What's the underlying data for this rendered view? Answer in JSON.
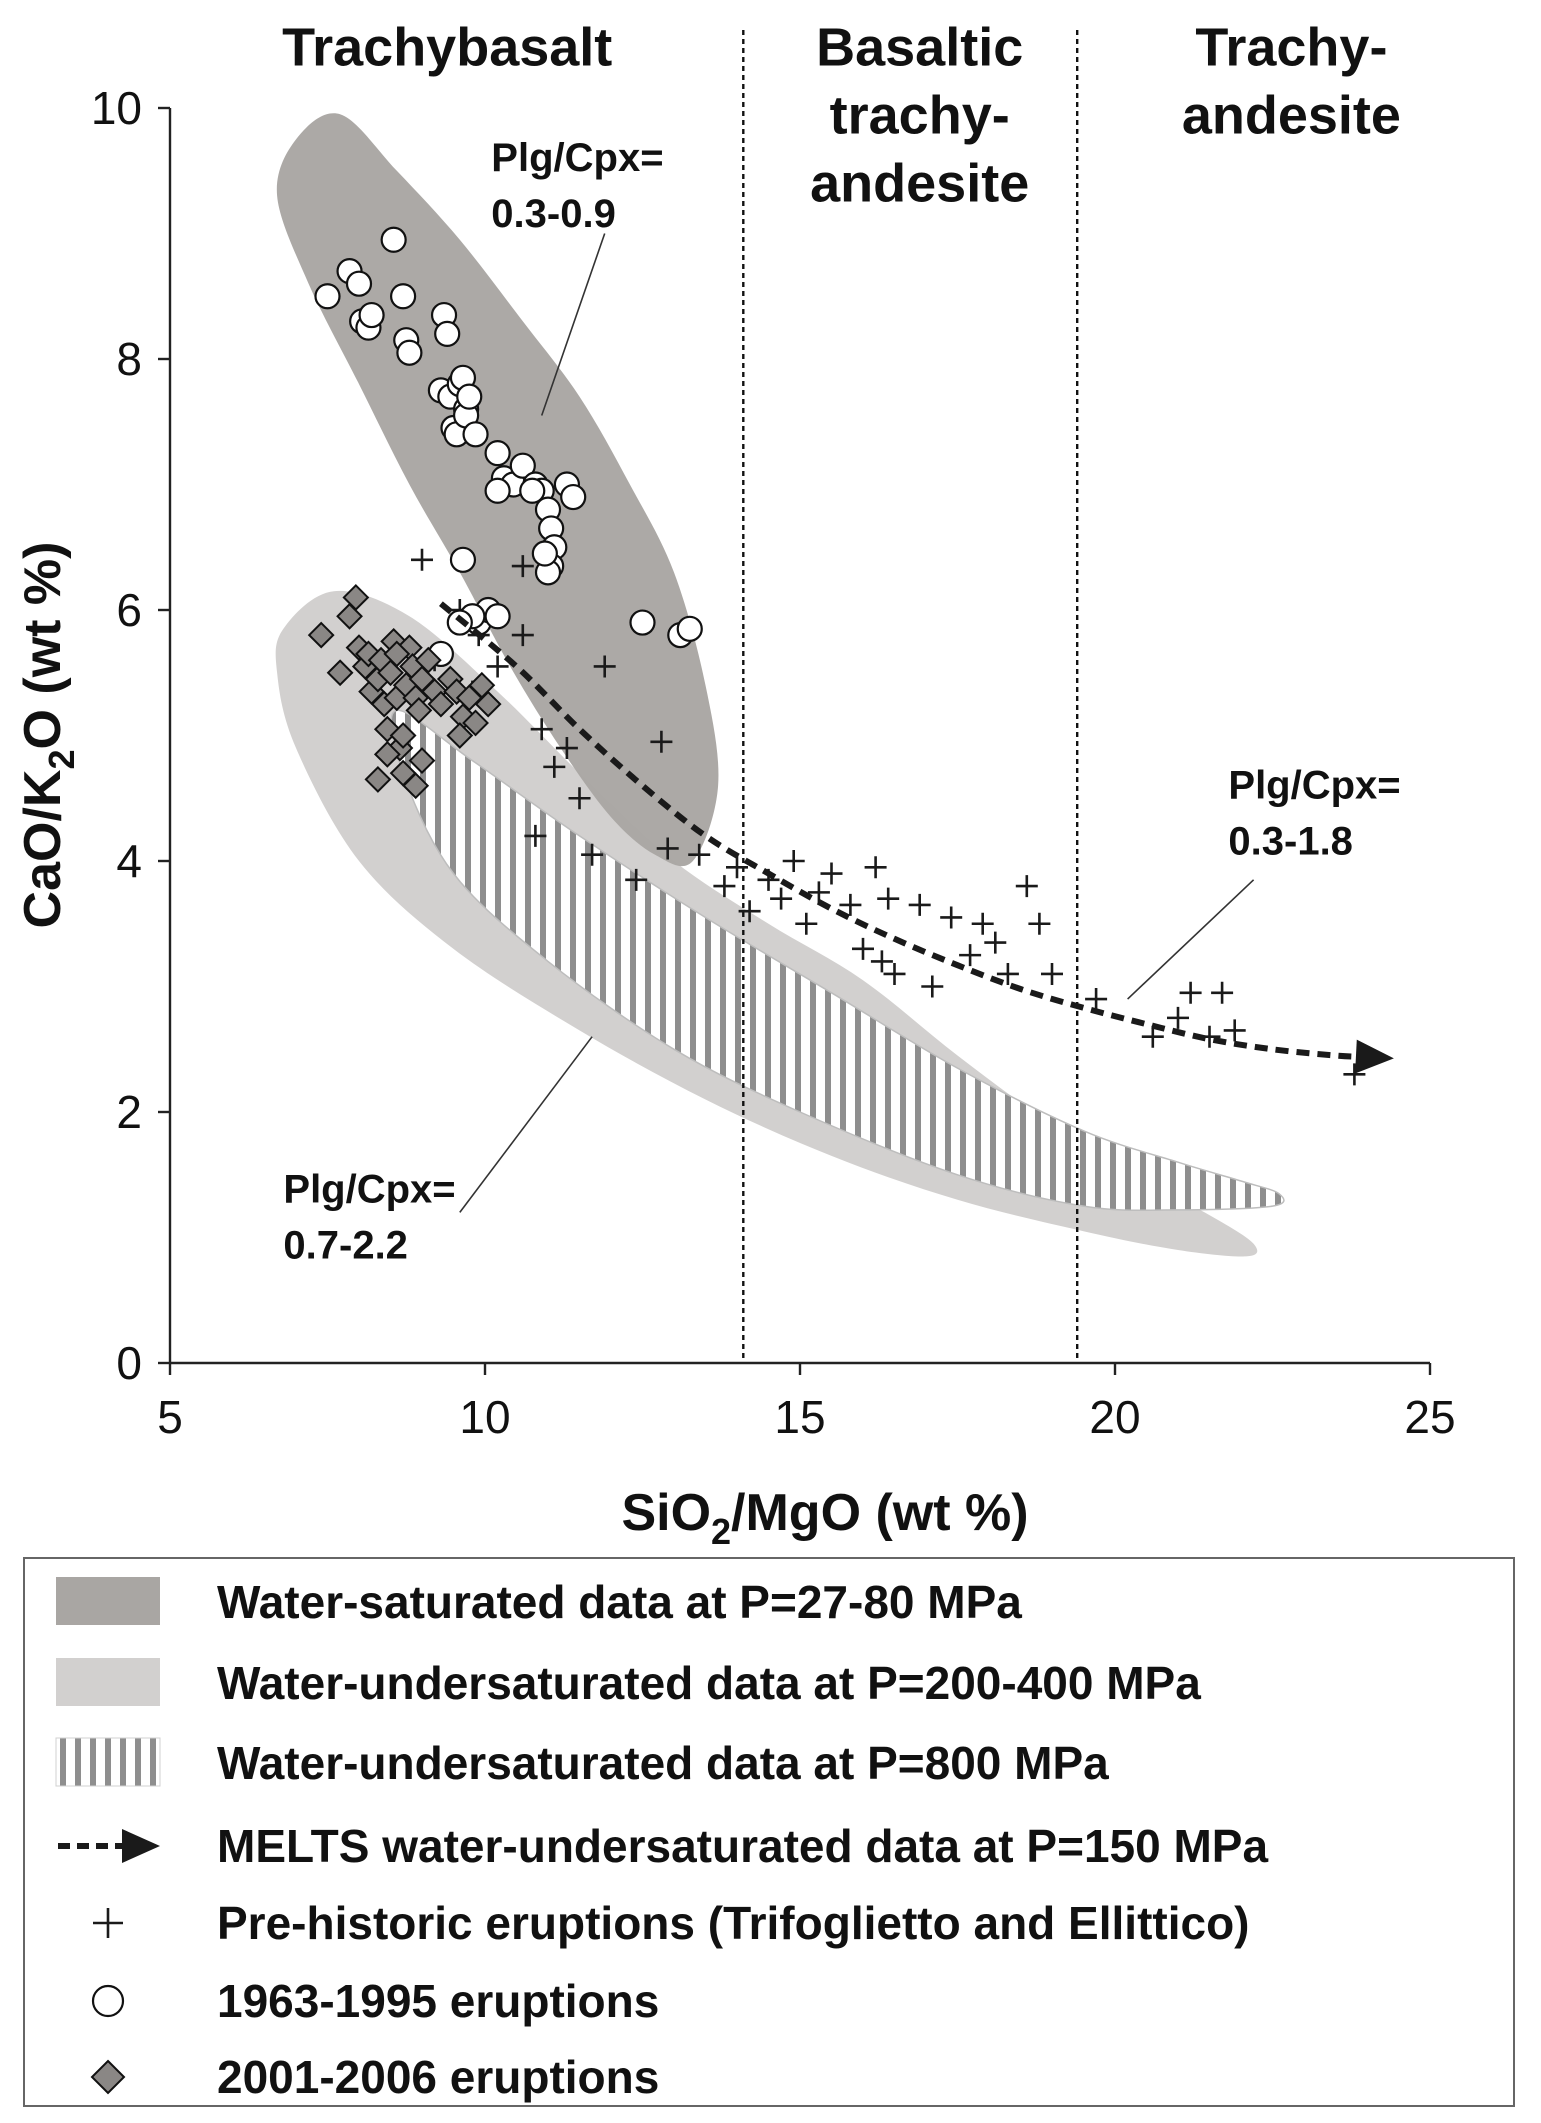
{
  "chart_data": {
    "type": "scatter",
    "title": "",
    "xlabel": "SiO2/MgO (wt %)",
    "ylabel": "CaO/K2O (wt %)",
    "xlim": [
      5,
      25
    ],
    "ylim": [
      0,
      10
    ],
    "xticks": [
      5,
      10,
      15,
      20,
      25
    ],
    "yticks": [
      0,
      2,
      4,
      6,
      8,
      10
    ],
    "xlabel_parts": {
      "a": "SiO",
      "sub": "2",
      "b": "/MgO (wt %)"
    },
    "ylabel_parts": {
      "a": "CaO/K",
      "sub": "2",
      "b": "O (wt %)"
    },
    "colors": {
      "water_saturated": "#a9a6a3",
      "undersaturated_200_400": "#d2d0cf",
      "undersaturated_800_stripe": "#8e8e8e",
      "melts_line": "#1a1a1a",
      "diamond_fill": "#8a8785"
    },
    "boundaries": [
      {
        "x": 14.1,
        "style": "dotted"
      },
      {
        "x": 19.4,
        "style": "dotted"
      }
    ],
    "rock_fields": [
      {
        "lines": [
          "Trachybasalt"
        ],
        "x": 9.4,
        "y_line0": 10.45
      },
      {
        "lines": [
          "Basaltic",
          "trachy-",
          "andesite"
        ],
        "x": 16.9,
        "y_line0": 10.45
      },
      {
        "lines": [
          "Trachy-",
          "andesite"
        ],
        "x": 22.8,
        "y_line0": 10.45
      }
    ],
    "ratio_labels": [
      {
        "lines": [
          "Plg/Cpx=",
          "0.3-0.9"
        ],
        "x": 10.1,
        "y_line0": 9.5,
        "pointer_from": [
          11.9,
          9.0
        ],
        "pointer_to": [
          10.9,
          7.55
        ]
      },
      {
        "lines": [
          "Plg/Cpx=",
          "0.3-1.8"
        ],
        "x": 21.8,
        "y_line0": 4.5,
        "pointer_from": [
          22.2,
          3.85
        ],
        "pointer_to": [
          20.2,
          2.9
        ]
      },
      {
        "lines": [
          "Plg/Cpx=",
          "0.7-2.2"
        ],
        "x": 6.8,
        "y_line0": 1.28,
        "pointer_from": [
          9.6,
          1.2
        ],
        "pointer_to": [
          11.7,
          2.6
        ]
      }
    ],
    "series": [
      {
        "name": "Water-saturated data at P=27-80 MPa",
        "kind": "field",
        "fill": "solid-dark",
        "outline": [
          [
            7.0,
            9.75
          ],
          [
            7.7,
            9.95
          ],
          [
            8.6,
            9.5
          ],
          [
            9.6,
            8.95
          ],
          [
            10.6,
            8.3
          ],
          [
            11.5,
            7.7
          ],
          [
            12.3,
            7.0
          ],
          [
            13.0,
            6.3
          ],
          [
            13.5,
            5.4
          ],
          [
            13.7,
            4.6
          ],
          [
            13.3,
            4.0
          ],
          [
            12.7,
            4.05
          ],
          [
            12.0,
            4.35
          ],
          [
            11.2,
            4.9
          ],
          [
            10.4,
            5.55
          ],
          [
            9.6,
            6.3
          ],
          [
            8.8,
            7.0
          ],
          [
            8.0,
            7.8
          ],
          [
            7.2,
            8.6
          ],
          [
            6.7,
            9.3
          ]
        ]
      },
      {
        "name": "Water-undersaturated data at P=200-400 MPa",
        "kind": "field",
        "fill": "solid-light",
        "outline": [
          [
            6.8,
            5.85
          ],
          [
            7.6,
            6.15
          ],
          [
            8.8,
            5.95
          ],
          [
            10.2,
            5.35
          ],
          [
            11.6,
            4.65
          ],
          [
            13.0,
            4.0
          ],
          [
            14.5,
            3.5
          ],
          [
            16.0,
            3.05
          ],
          [
            17.5,
            2.45
          ],
          [
            19.0,
            1.9
          ],
          [
            20.5,
            1.45
          ],
          [
            21.6,
            1.15
          ],
          [
            22.2,
            0.95
          ],
          [
            22.1,
            0.85
          ],
          [
            21.0,
            0.9
          ],
          [
            19.5,
            1.05
          ],
          [
            17.5,
            1.3
          ],
          [
            15.5,
            1.65
          ],
          [
            13.5,
            2.1
          ],
          [
            11.5,
            2.65
          ],
          [
            9.5,
            3.3
          ],
          [
            8.0,
            4.0
          ],
          [
            7.0,
            4.9
          ],
          [
            6.7,
            5.5
          ]
        ]
      },
      {
        "name": "Water-undersaturated data at P=800 MPa",
        "kind": "field",
        "fill": "vertical-stripes",
        "outline": [
          [
            8.6,
            5.2
          ],
          [
            9.8,
            4.8
          ],
          [
            11.5,
            4.2
          ],
          [
            13.5,
            3.55
          ],
          [
            15.5,
            2.95
          ],
          [
            17.5,
            2.35
          ],
          [
            19.5,
            1.85
          ],
          [
            21.0,
            1.6
          ],
          [
            22.0,
            1.45
          ],
          [
            22.6,
            1.35
          ],
          [
            22.5,
            1.25
          ],
          [
            21.0,
            1.22
          ],
          [
            19.5,
            1.25
          ],
          [
            17.5,
            1.5
          ],
          [
            15.0,
            2.0
          ],
          [
            13.0,
            2.5
          ],
          [
            11.0,
            3.2
          ],
          [
            9.5,
            3.9
          ],
          [
            8.7,
            4.7
          ]
        ]
      },
      {
        "name": "MELTS water-undersaturated data at P=150 MPa",
        "kind": "line",
        "x": [
          9.3,
          10.5,
          11.5,
          12.5,
          13.5,
          14.5,
          15.5,
          16.5,
          17.5,
          18.5,
          19.5,
          20.5,
          21.5,
          22.5,
          23.5,
          24.3
        ],
        "y": [
          6.05,
          5.55,
          5.05,
          4.6,
          4.2,
          3.9,
          3.62,
          3.38,
          3.17,
          2.98,
          2.83,
          2.7,
          2.58,
          2.5,
          2.45,
          2.43
        ]
      },
      {
        "name": "Pre-historic eruptions (Trifoglietto and Ellittico)",
        "kind": "points",
        "marker": "plus",
        "x": [
          9.0,
          10.6,
          9.6,
          9.9,
          10.2,
          10.6,
          10.9,
          11.1,
          11.5,
          11.7,
          12.8,
          10.8,
          11.3,
          11.9,
          12.4,
          12.9,
          13.4,
          13.8,
          14.0,
          14.2,
          14.5,
          14.7,
          14.9,
          15.1,
          15.3,
          15.5,
          15.8,
          16.0,
          16.2,
          16.3,
          16.4,
          16.5,
          16.9,
          17.1,
          17.4,
          17.7,
          17.9,
          18.1,
          18.3,
          18.6,
          18.8,
          19.0,
          19.7,
          20.6,
          21.0,
          21.2,
          21.5,
          21.7,
          21.9,
          23.8,
          9.2,
          9.8
        ],
        "y": [
          6.4,
          6.35,
          6.0,
          5.8,
          5.55,
          5.8,
          5.05,
          4.75,
          4.5,
          4.05,
          4.95,
          4.2,
          4.9,
          5.55,
          3.85,
          4.1,
          4.05,
          3.8,
          3.95,
          3.6,
          3.85,
          3.7,
          4.0,
          3.5,
          3.75,
          3.9,
          3.65,
          3.3,
          3.95,
          3.2,
          3.7,
          3.1,
          3.65,
          3.0,
          3.55,
          3.25,
          3.5,
          3.35,
          3.1,
          3.8,
          3.5,
          3.1,
          2.9,
          2.6,
          2.75,
          2.95,
          2.6,
          2.95,
          2.65,
          2.3,
          5.6,
          5.35
        ]
      },
      {
        "name": "1963-1995 eruptions",
        "kind": "points",
        "marker": "circle",
        "x": [
          7.5,
          7.85,
          8.0,
          8.05,
          8.15,
          8.2,
          8.55,
          8.7,
          8.75,
          8.8,
          9.35,
          9.4,
          9.3,
          9.45,
          9.6,
          9.65,
          9.7,
          9.5,
          9.55,
          9.7,
          9.85,
          9.75,
          10.2,
          10.3,
          10.45,
          10.6,
          10.8,
          10.9,
          11.0,
          11.05,
          11.1,
          11.3,
          11.4,
          10.75,
          10.2,
          11.05,
          11.0,
          10.95,
          9.65,
          9.9,
          10.05,
          10.2,
          12.5,
          13.1,
          13.25,
          9.8,
          9.6,
          9.3
        ],
        "y": [
          8.5,
          8.7,
          8.6,
          8.3,
          8.25,
          8.35,
          8.95,
          8.5,
          8.15,
          8.05,
          8.35,
          8.2,
          7.75,
          7.7,
          7.8,
          7.85,
          7.6,
          7.45,
          7.4,
          7.55,
          7.4,
          7.7,
          7.25,
          7.05,
          7.0,
          7.15,
          7.0,
          6.95,
          6.8,
          6.65,
          6.5,
          7.0,
          6.9,
          6.95,
          6.95,
          6.35,
          6.3,
          6.45,
          6.4,
          5.9,
          6.0,
          5.95,
          5.9,
          5.8,
          5.85,
          5.95,
          5.9,
          5.65
        ]
      },
      {
        "name": "2001-2006 eruptions",
        "kind": "points",
        "marker": "diamond",
        "x": [
          7.4,
          7.7,
          7.85,
          7.95,
          8.0,
          8.1,
          8.15,
          8.2,
          8.3,
          8.35,
          8.4,
          8.45,
          8.5,
          8.55,
          8.6,
          8.65,
          8.7,
          8.75,
          8.8,
          8.85,
          8.9,
          8.95,
          9.0,
          9.1,
          9.2,
          9.3,
          9.45,
          9.55,
          9.65,
          9.75,
          9.85,
          9.95,
          10.05,
          8.45,
          8.7,
          8.9,
          9.0,
          8.6,
          8.3,
          9.6
        ],
        "y": [
          5.8,
          5.5,
          5.95,
          6.1,
          5.7,
          5.55,
          5.65,
          5.35,
          5.45,
          5.6,
          5.25,
          5.05,
          5.5,
          5.75,
          5.3,
          4.9,
          5.0,
          5.4,
          5.7,
          5.55,
          5.3,
          5.2,
          5.45,
          5.6,
          5.35,
          5.25,
          5.45,
          5.35,
          5.15,
          5.3,
          5.1,
          5.4,
          5.25,
          4.85,
          4.7,
          4.6,
          4.8,
          5.65,
          4.65,
          5.0
        ]
      }
    ]
  },
  "legend": [
    {
      "swatch": "field-dark",
      "label": "Water-saturated data at P=27-80 MPa"
    },
    {
      "swatch": "field-light",
      "label": "Water-undersaturated data at P=200-400 MPa"
    },
    {
      "swatch": "field-stripes",
      "label": "Water-undersaturated data at P=800 MPa"
    },
    {
      "swatch": "dashed-arrow",
      "label": "MELTS water-undersaturated data at P=150 MPa"
    },
    {
      "swatch": "plus",
      "label": "Pre-historic eruptions (Trifoglietto and Ellittico)"
    },
    {
      "swatch": "circle",
      "label": "1963-1995 eruptions"
    },
    {
      "swatch": "diamond",
      "label": "2001-2006 eruptions"
    }
  ]
}
